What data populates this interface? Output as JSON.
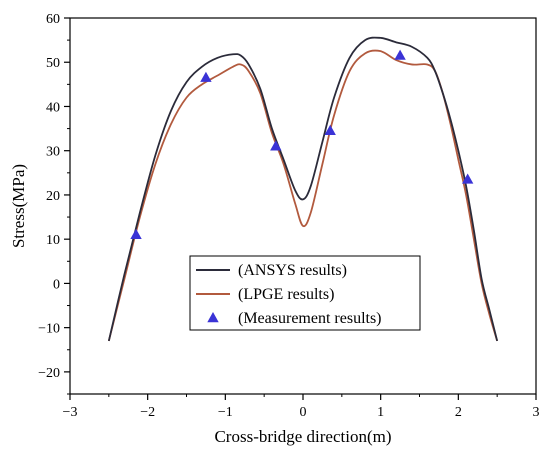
{
  "chart_data": {
    "type": "line",
    "title": "",
    "xlabel": "Cross-bridge direction(m)",
    "ylabel": "Stress(MPa)",
    "xlim": [
      -3,
      3
    ],
    "ylim": [
      -25,
      60
    ],
    "xticks": [
      -3,
      -2,
      -1,
      0,
      1,
      2,
      3
    ],
    "yticks": [
      -20,
      -10,
      0,
      10,
      20,
      30,
      40,
      50,
      60
    ],
    "xtick_labels": [
      "−3",
      "−2",
      "−1",
      "0",
      "1",
      "2",
      "3"
    ],
    "ytick_labels": [
      "−20",
      "−10",
      "0",
      "10",
      "20",
      "30",
      "40",
      "50",
      "60"
    ],
    "grid": false,
    "legend_position": "center-bottom",
    "series": [
      {
        "name": "(ANSYS results)",
        "kind": "line",
        "color": "#2b2b3a",
        "x": [
          -2.5,
          -2.3,
          -2.1,
          -1.9,
          -1.7,
          -1.5,
          -1.3,
          -1.1,
          -0.9,
          -0.8,
          -0.7,
          -0.55,
          -0.4,
          -0.25,
          -0.1,
          0.0,
          0.1,
          0.25,
          0.4,
          0.6,
          0.8,
          1.0,
          1.2,
          1.4,
          1.6,
          1.7,
          1.8,
          1.9,
          2.0,
          2.1,
          2.2,
          2.3,
          2.4,
          2.5
        ],
        "y": [
          -13,
          2,
          16,
          29,
          39,
          45.5,
          49,
          51,
          51.8,
          51.5,
          49.5,
          44,
          35,
          28,
          21,
          19,
          22,
          32,
          42,
          51,
          55,
          55.5,
          54.5,
          53.5,
          51,
          48,
          43,
          37,
          30,
          22,
          12,
          1,
          -6,
          -13
        ]
      },
      {
        "name": "(LPGE results)",
        "kind": "line",
        "color": "#b25a3e",
        "x": [
          -2.5,
          -2.3,
          -2.1,
          -1.9,
          -1.7,
          -1.5,
          -1.3,
          -1.1,
          -0.9,
          -0.8,
          -0.7,
          -0.55,
          -0.4,
          -0.25,
          -0.1,
          0.0,
          0.1,
          0.25,
          0.4,
          0.6,
          0.8,
          1.0,
          1.2,
          1.4,
          1.6,
          1.7,
          1.8,
          1.9,
          2.0,
          2.1,
          2.2,
          2.3,
          2.4,
          2.5
        ],
        "y": [
          -13,
          1,
          15,
          27,
          36,
          42,
          45,
          47,
          49,
          49.5,
          48,
          43,
          34,
          27,
          18,
          13,
          16,
          27,
          38,
          48,
          52,
          52.5,
          50.5,
          49.5,
          49.5,
          48,
          43,
          36,
          28,
          20,
          10,
          0,
          -7,
          -13
        ]
      },
      {
        "name": "(Measurement results)",
        "kind": "scatter",
        "marker": "triangle",
        "color": "#3a33d6",
        "x": [
          -2.15,
          -1.25,
          -0.35,
          0.35,
          1.25,
          2.12
        ],
        "y": [
          11,
          46.5,
          31,
          34.5,
          51.5,
          23.5
        ]
      }
    ]
  }
}
